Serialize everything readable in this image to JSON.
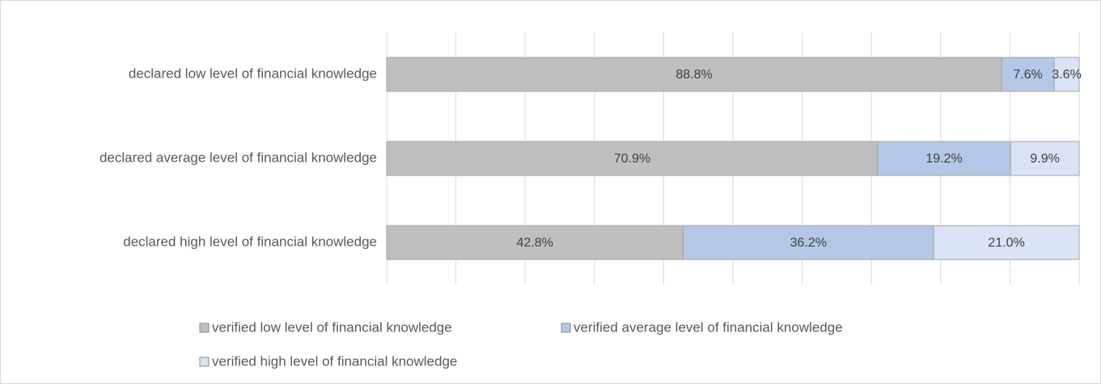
{
  "chart_data": {
    "type": "stacked-bar-horizontal",
    "categories": [
      "declared low level of financial knowledge",
      "declared average level of financial knowledge",
      "declared high level of financial knowledge"
    ],
    "series": [
      {
        "name": "verified low level of financial knowledge",
        "color": "#bfbfbf",
        "values": [
          88.8,
          70.9,
          42.8
        ],
        "value_labels": [
          "88.8%",
          "70.9%",
          "42.8%"
        ]
      },
      {
        "name": "verified average level of financial knowledge",
        "color": "#b4c7e7",
        "values": [
          7.6,
          19.2,
          36.2
        ],
        "value_labels": [
          "7.6%",
          "19.2%",
          "36.2%"
        ]
      },
      {
        "name": "verified high level of financial knowledge",
        "color": "#dae3f3",
        "values": [
          3.6,
          9.9,
          21.0
        ],
        "value_labels": [
          "3.6%",
          "9.9%",
          "21.0%"
        ]
      }
    ],
    "xlim": [
      0,
      100
    ],
    "xticks": [
      0,
      10,
      20,
      30,
      40,
      50,
      60,
      70,
      80,
      90,
      100
    ],
    "grid": true
  }
}
